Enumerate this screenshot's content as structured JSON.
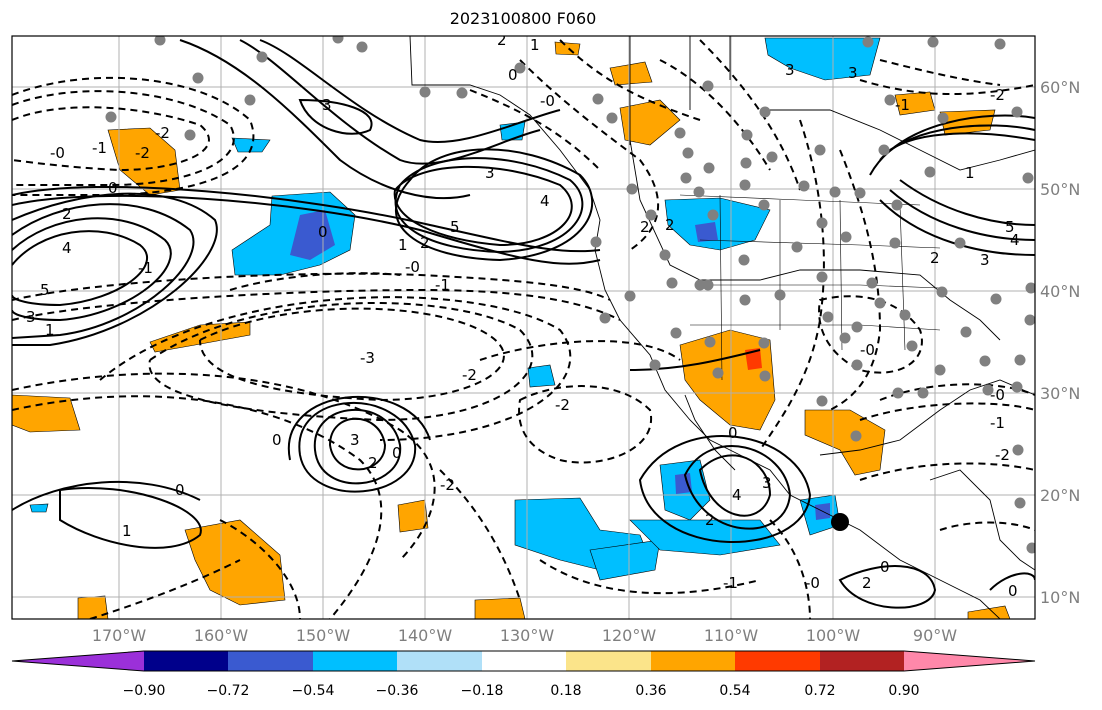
{
  "title": "2023100800 F060",
  "map": {
    "latitude_labels": [
      "60°N",
      "50°N",
      "40°N",
      "30°N",
      "20°N",
      "10°N"
    ],
    "longitude_labels": [
      "170°W",
      "160°W",
      "150°W",
      "140°W",
      "130°W",
      "120°W",
      "110°W",
      "100°W",
      "90°W"
    ],
    "marker": {
      "label": "storm-center",
      "color": "#000000"
    }
  },
  "colorbar": {
    "colors": [
      "#9b30d9",
      "#00008b",
      "#3a5ad0",
      "#00bfff",
      "#b0e0f8",
      "#ffffff",
      "#fbe48a",
      "#ffa500",
      "#ff3a00",
      "#b22222",
      "#ff88aa"
    ],
    "tick_labels": [
      "−0.90",
      "−0.72",
      "−0.54",
      "−0.36",
      "−0.18",
      "0.18",
      "0.36",
      "0.54",
      "0.72",
      "0.90"
    ]
  },
  "contour_labels": {
    "positive": [
      "5",
      "4",
      "3",
      "2",
      "1",
      "0",
      "5",
      "4",
      "3",
      "2",
      "1",
      "3",
      "2",
      "1",
      "5",
      "4",
      "3",
      "2",
      "1",
      "3",
      "2",
      "1",
      "0"
    ],
    "negative": [
      "-0",
      "-1",
      "-2",
      "-3",
      "-2",
      "-1",
      "-0",
      "-2",
      "-3",
      "-2",
      "-2",
      "-1",
      "-1",
      "-2",
      "-2",
      "-1",
      "0",
      "-1",
      "-2",
      "-2",
      "-1"
    ]
  },
  "colors": {
    "frame": "#000000",
    "grid": "#b0b0b0",
    "axis_text": "#7f7f7f"
  }
}
